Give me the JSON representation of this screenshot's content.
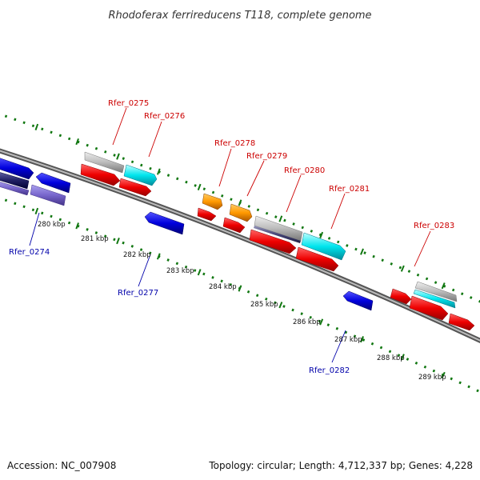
{
  "title": "Rhodoferax ferrireducens T118, complete genome",
  "footer": {
    "accession": "Accession: NC_007908",
    "summary": "Topology: circular; Length: 4,712,337 bp; Genes: 4,228"
  },
  "colors": {
    "forward_label": "#cc0000",
    "reverse_label": "#0000aa",
    "cds_red": "#ee0000",
    "cds_blue": "#0000dd",
    "cds_orange": "#ff9900",
    "cds_cyan": "#00e5ee",
    "cds_gray": "#bbbbbb",
    "cds_purple": "#7766cc",
    "gc_skew_dots": "#117711",
    "backbone": "#888888"
  },
  "ticks": [
    "280 kbp",
    "281 kbp",
    "282 kbp",
    "283 kbp",
    "284 kbp",
    "285 kbp",
    "286 kbp",
    "287 kbp",
    "288 kbp",
    "289 kbp"
  ],
  "forward_genes": [
    "Rfer_0275",
    "Rfer_0276",
    "Rfer_0278",
    "Rfer_0279",
    "Rfer_0280",
    "Rfer_0281",
    "Rfer_0283"
  ],
  "reverse_genes": [
    "Rfer_0274",
    "Rfer_0277",
    "Rfer_0282"
  ]
}
